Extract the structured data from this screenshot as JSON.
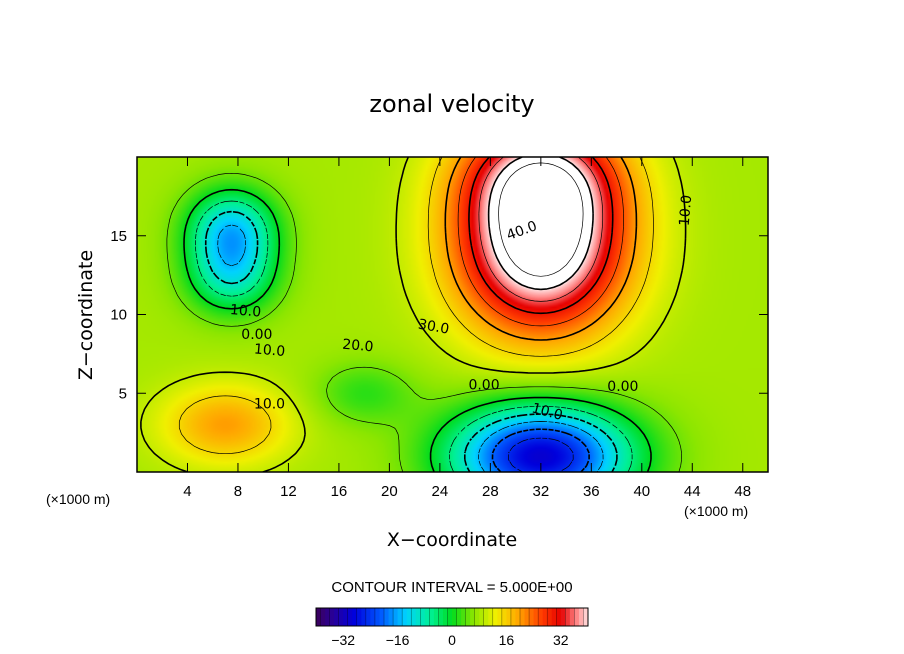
{
  "chart_data": {
    "type": "heatmap",
    "title": "zonal velocity",
    "xlabel": "X−coordinate",
    "ylabel": "Z−coordinate",
    "x_unit_label": "(×1000 m)",
    "y_unit_label": "(×1000 m)",
    "xlim": [
      0,
      50
    ],
    "ylim": [
      0,
      20
    ],
    "x_ticks": [
      4,
      8,
      12,
      16,
      20,
      24,
      28,
      32,
      36,
      40,
      44,
      48
    ],
    "y_ticks": [
      5,
      10,
      15
    ],
    "contour_interval_text": "CONTOUR INTERVAL = 5.000E+00",
    "contour_labels": [
      "40.0",
      "30.0",
      "20.0",
      "10.0",
      "0.00",
      "10.0",
      "10.0",
      "0.00",
      "10.0",
      "10.0",
      "0.00"
    ],
    "colorbar": {
      "min": -40,
      "max": 40,
      "ticks": [
        -32,
        -16,
        0,
        16,
        32
      ]
    },
    "field_features": [
      {
        "description": "positive jet core",
        "x": 32,
        "z": 14.5,
        "value": 45
      },
      {
        "description": "negative lower core",
        "x": 32,
        "z": 1,
        "value": -30
      },
      {
        "description": "upper-left negative lobes",
        "x": 7,
        "z": 15,
        "value": -16
      },
      {
        "description": "lower-left positive region",
        "x": 7,
        "z": 3,
        "value": 18
      }
    ],
    "grid": false,
    "legend": "colorbar-bottom"
  }
}
